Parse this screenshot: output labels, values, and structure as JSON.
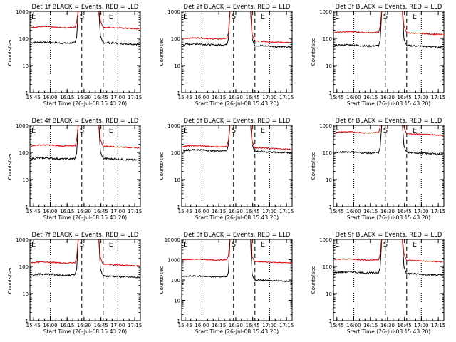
{
  "figure": {
    "background": "#ffffff",
    "axis_color": "#000000"
  },
  "chart_data": [
    {
      "type": "line",
      "det": "1f",
      "title": "Det 1f BLACK = Events, RED = LLD",
      "xlabel": "Start Time (26-Jul-08 15:43:20)",
      "ylabel": "Counts/sec",
      "scale": "log",
      "ylim": [
        1,
        1000
      ],
      "yticks": [
        "1",
        "10",
        "100",
        "1000"
      ],
      "xticks": [
        "15:45",
        "16:00",
        "16:15",
        "16:30",
        "16:45",
        "17:00",
        "17:15"
      ],
      "markers": {
        "E_left": "E",
        "S": "S",
        "E_right": "E"
      },
      "series": [
        {
          "name": "Events",
          "color": "#000000",
          "pre": 70,
          "post": 70
        },
        {
          "name": "LLD",
          "color": "#dd0000",
          "pre": 260,
          "post": 260
        }
      ]
    },
    {
      "type": "line",
      "det": "2f",
      "title": "Det 2f BLACK = Events, RED = LLD",
      "xlabel": "Start Time (26-Jul-08 15:43:20)",
      "ylabel": "Counts/sec",
      "scale": "log",
      "ylim": [
        1,
        1000
      ],
      "yticks": [
        "1",
        "10",
        "100",
        "1000"
      ],
      "xticks": [
        "15:45",
        "16:00",
        "16:15",
        "16:30",
        "16:45",
        "17:00",
        "17:15"
      ],
      "markers": {
        "E_left": "E",
        "S": "S",
        "E_right": "E"
      },
      "series": [
        {
          "name": "Events",
          "color": "#000000",
          "pre": 60,
          "post": 55
        },
        {
          "name": "LLD",
          "color": "#dd0000",
          "pre": 100,
          "post": 80
        }
      ]
    },
    {
      "type": "line",
      "det": "3f",
      "title": "Det 3f BLACK = Events, RED = LLD",
      "xlabel": "Start Time (26-Jul-08 15:43:20)",
      "ylabel": "Counts/sec",
      "scale": "log",
      "ylim": [
        1,
        1000
      ],
      "yticks": [
        "1",
        "10",
        "100",
        "1000"
      ],
      "xticks": [
        "15:45",
        "16:00",
        "16:15",
        "16:30",
        "16:45",
        "17:00",
        "17:15"
      ],
      "markers": {
        "E_left": "E",
        "S": "S",
        "E_right": "E"
      },
      "series": [
        {
          "name": "Events",
          "color": "#000000",
          "pre": 55,
          "post": 55
        },
        {
          "name": "LLD",
          "color": "#dd0000",
          "pre": 170,
          "post": 160
        }
      ]
    },
    {
      "type": "line",
      "det": "4f",
      "title": "Det 4f BLACK = Events, RED = LLD",
      "xlabel": "Start Time (26-Jul-08 15:43:20)",
      "ylabel": "Counts/sec",
      "scale": "log",
      "ylim": [
        1,
        1000
      ],
      "yticks": [
        "1",
        "10",
        "100",
        "1000"
      ],
      "xticks": [
        "15:45",
        "16:00",
        "16:15",
        "16:30",
        "16:45",
        "17:00",
        "17:15"
      ],
      "markers": {
        "E_left": "E",
        "S": "S",
        "E_right": "E"
      },
      "series": [
        {
          "name": "Events",
          "color": "#000000",
          "pre": 60,
          "post": 60
        },
        {
          "name": "LLD",
          "color": "#dd0000",
          "pre": 180,
          "post": 170
        }
      ]
    },
    {
      "type": "line",
      "det": "5f",
      "title": "Det 5f BLACK = Events, RED = LLD",
      "xlabel": "Start Time (26-Jul-08 15:43:20)",
      "ylabel": "Counts/sec",
      "scale": "log",
      "ylim": [
        1,
        1000
      ],
      "yticks": [
        "1",
        "10",
        "100",
        "1000"
      ],
      "xticks": [
        "15:45",
        "16:00",
        "16:15",
        "16:30",
        "16:45",
        "17:00",
        "17:15"
      ],
      "markers": {
        "E_left": "E",
        "S": "S",
        "E_right": "E"
      },
      "series": [
        {
          "name": "Events",
          "color": "#000000",
          "pre": 120,
          "post": 110
        },
        {
          "name": "LLD",
          "color": "#dd0000",
          "pre": 170,
          "post": 150
        }
      ]
    },
    {
      "type": "line",
      "det": "6f",
      "title": "Det 6f BLACK = Events, RED = LLD",
      "xlabel": "Start Time (26-Jul-08 15:43:20)",
      "ylabel": "Counts/sec",
      "scale": "log",
      "ylim": [
        1,
        1000
      ],
      "yticks": [
        "1",
        "10",
        "100",
        "1000"
      ],
      "xticks": [
        "15:45",
        "16:00",
        "16:15",
        "16:30",
        "16:45",
        "17:00",
        "17:15"
      ],
      "markers": {
        "E_left": "E",
        "S": "S",
        "E_right": "E"
      },
      "series": [
        {
          "name": "Events",
          "color": "#000000",
          "pre": 100,
          "post": 100
        },
        {
          "name": "LLD",
          "color": "#dd0000",
          "pre": 550,
          "post": 500
        }
      ]
    },
    {
      "type": "line",
      "det": "7f",
      "title": "Det 7f BLACK = Events, RED = LLD",
      "xlabel": "Start Time (26-Jul-08 15:43:20)",
      "ylabel": "Counts/sec",
      "scale": "log",
      "ylim": [
        1,
        1000
      ],
      "yticks": [
        "1",
        "10",
        "100",
        "1000"
      ],
      "xticks": [
        "15:45",
        "16:00",
        "16:15",
        "16:30",
        "16:45",
        "17:00",
        "17:15"
      ],
      "markers": {
        "E_left": "E",
        "S": "S",
        "E_right": "E"
      },
      "series": [
        {
          "name": "Events",
          "color": "#000000",
          "pre": 50,
          "post": 45
        },
        {
          "name": "LLD",
          "color": "#dd0000",
          "pre": 140,
          "post": 120
        }
      ]
    },
    {
      "type": "line",
      "det": "8f",
      "title": "Det 8f BLACK = Events, RED = LLD",
      "xlabel": "Start Time (26-Jul-08 15:43:20)",
      "ylabel": "Counts/sec",
      "scale": "log",
      "ylim": [
        1,
        10000
      ],
      "yticks": [
        "1",
        "10",
        "100",
        "1000",
        "10000"
      ],
      "xticks": [
        "15:45",
        "16:00",
        "16:15",
        "16:30",
        "16:45",
        "17:00",
        "17:15"
      ],
      "markers": {
        "E_left": "E",
        "S": "S",
        "E_right": "E"
      },
      "series": [
        {
          "name": "Events",
          "color": "#000000",
          "pre": 150,
          "post": 100
        },
        {
          "name": "LLD",
          "color": "#dd0000",
          "pre": 1000,
          "post": 800
        }
      ]
    },
    {
      "type": "line",
      "det": "9f",
      "title": "Det 9f BLACK = Events, RED = LLD",
      "xlabel": "Start Time (26-Jul-08 15:43:20)",
      "ylabel": "Counts/sec",
      "scale": "log",
      "ylim": [
        1,
        1000
      ],
      "yticks": [
        "1",
        "10",
        "100",
        "1000"
      ],
      "xticks": [
        "15:45",
        "16:00",
        "16:15",
        "16:30",
        "16:45",
        "17:00",
        "17:15"
      ],
      "markers": {
        "E_left": "E",
        "S": "S",
        "E_right": "E"
      },
      "series": [
        {
          "name": "Events",
          "color": "#000000",
          "pre": 60,
          "post": 55
        },
        {
          "name": "LLD",
          "color": "#dd0000",
          "pre": 180,
          "post": 170
        }
      ]
    }
  ]
}
